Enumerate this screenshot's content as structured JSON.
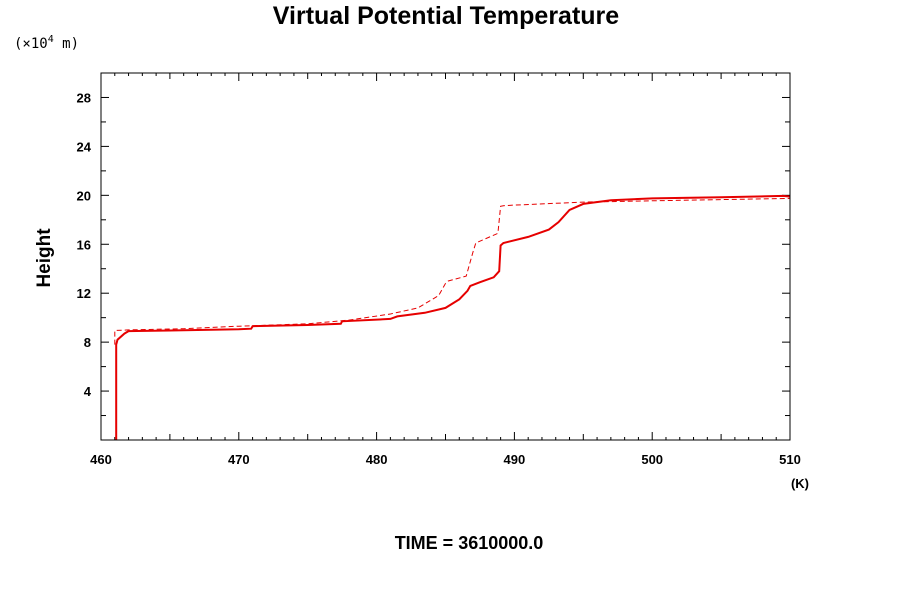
{
  "chart_data": {
    "type": "line",
    "title": "Virtual Potential Temperature",
    "ylabel": "Height",
    "y_unit_prefix": "(×10",
    "y_unit_exp": "4",
    "y_unit_suffix": " m)",
    "x_unit": "(K)",
    "xlim": [
      460,
      510
    ],
    "ylim": [
      0,
      30
    ],
    "x_ticks": [
      460,
      470,
      480,
      490,
      500,
      510
    ],
    "y_ticks": [
      4,
      8,
      12,
      16,
      20,
      24,
      28
    ],
    "grid": false,
    "series": [
      {
        "style": "solid",
        "color": "#e60000",
        "x": [
          461.1,
          461.1,
          461.2,
          461.7,
          462.0,
          465.0,
          470.0,
          470.9,
          471.0,
          475.0,
          477.4,
          477.5,
          481.0,
          481.5,
          483.5,
          485.0,
          486.0,
          486.6,
          486.8,
          487.5,
          488.5,
          488.9,
          489.0,
          489.2,
          491.0,
          492.5,
          493.2,
          494.0,
          495.0,
          497.0,
          500.0,
          505.0,
          509.5,
          510.0
        ],
        "y": [
          0,
          7.8,
          8.2,
          8.7,
          8.9,
          8.95,
          9.05,
          9.1,
          9.3,
          9.4,
          9.5,
          9.7,
          9.9,
          10.1,
          10.4,
          10.8,
          11.5,
          12.2,
          12.6,
          12.9,
          13.3,
          13.8,
          15.9,
          16.1,
          16.6,
          17.2,
          17.8,
          18.8,
          19.3,
          19.6,
          19.75,
          19.85,
          19.95,
          19.9
        ]
      },
      {
        "style": "dashed",
        "color": "#e60000",
        "x": [
          461.0,
          461.0,
          462.0,
          466.0,
          470.0,
          475.0,
          478.0,
          481.0,
          483.0,
          484.5,
          485.0,
          485.2,
          486.5,
          487.0,
          487.2,
          488.8,
          489.0,
          489.2,
          490.0,
          495.0,
          500.0,
          505.0,
          510.0
        ],
        "y": [
          7.8,
          8.95,
          9.0,
          9.1,
          9.3,
          9.5,
          9.8,
          10.3,
          10.8,
          11.8,
          12.8,
          13.0,
          13.4,
          15.4,
          16.1,
          16.9,
          19.1,
          19.15,
          19.2,
          19.45,
          19.55,
          19.65,
          19.75
        ]
      }
    ]
  },
  "footer": {
    "time_label": "TIME = 3610000.0"
  }
}
